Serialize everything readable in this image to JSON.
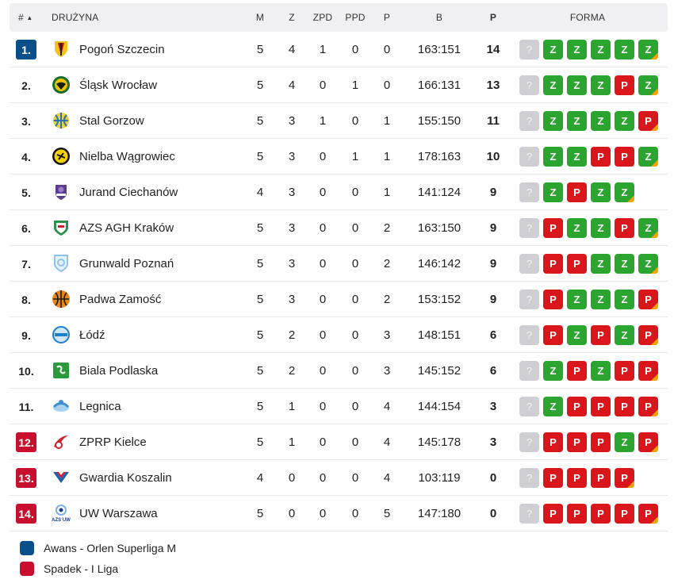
{
  "colors": {
    "promotion": "#0b4f8a",
    "relegation": "#c8102e",
    "win": "#2ba52f",
    "loss": "#d8161b",
    "unknown": "#cfcfd3",
    "latest_marker": "#f2a400"
  },
  "header": {
    "pos": "#",
    "sort_icon": "▲",
    "team": "DRUŻYNA",
    "m": "M",
    "z": "Z",
    "zpd": "ZPD",
    "ppd": "PPD",
    "p": "P",
    "b": "B",
    "pts": "P",
    "forma": "FORMA"
  },
  "rows": [
    {
      "pos": "1.",
      "zone": "promo",
      "team": "Pogoń Szczecin",
      "m": "5",
      "z": "4",
      "zpd": "1",
      "ppd": "0",
      "p": "0",
      "b": "163:151",
      "pts": "14",
      "form": [
        "?",
        "Z",
        "Z",
        "Z",
        "Z",
        "Z"
      ],
      "logo": "crest-red-gold",
      "c1": "#b5121b",
      "c2": "#f6c21b"
    },
    {
      "pos": "2.",
      "zone": "",
      "team": "Śląsk Wrocław",
      "m": "5",
      "z": "4",
      "zpd": "0",
      "ppd": "1",
      "p": "0",
      "b": "166:131",
      "pts": "13",
      "form": [
        "?",
        "Z",
        "Z",
        "Z",
        "P",
        "Z"
      ],
      "logo": "eagle-green",
      "c1": "#1a6b2e",
      "c2": "#e8c400"
    },
    {
      "pos": "3.",
      "zone": "",
      "team": "Stal Gorzow",
      "m": "5",
      "z": "3",
      "zpd": "1",
      "ppd": "0",
      "p": "1",
      "b": "155:150",
      "pts": "11",
      "form": [
        "?",
        "Z",
        "Z",
        "Z",
        "Z",
        "P"
      ],
      "logo": "ball-blue-yellow",
      "c1": "#2a6fb8",
      "c2": "#e6d23a"
    },
    {
      "pos": "4.",
      "zone": "",
      "team": "Nielba Wągrowiec",
      "m": "5",
      "z": "3",
      "zpd": "0",
      "ppd": "1",
      "p": "1",
      "b": "178:163",
      "pts": "10",
      "form": [
        "?",
        "Z",
        "Z",
        "P",
        "P",
        "Z"
      ],
      "logo": "ring-yellow",
      "c1": "#f3d000",
      "c2": "#111111"
    },
    {
      "pos": "5.",
      "zone": "",
      "team": "Jurand Ciechanów",
      "m": "4",
      "z": "3",
      "zpd": "0",
      "ppd": "0",
      "p": "1",
      "b": "141:124",
      "pts": "9",
      "form": [
        "?",
        "Z",
        "P",
        "Z",
        "Z"
      ],
      "logo": "knight-purple",
      "c1": "#5b3c8e",
      "c2": "#9b7cc8"
    },
    {
      "pos": "6.",
      "zone": "",
      "team": "AZS AGH Kraków",
      "m": "5",
      "z": "3",
      "zpd": "0",
      "ppd": "0",
      "p": "2",
      "b": "163:150",
      "pts": "9",
      "form": [
        "?",
        "P",
        "Z",
        "Z",
        "P",
        "Z"
      ],
      "logo": "shield-green-red",
      "c1": "#2a8f4a",
      "c2": "#d0202a"
    },
    {
      "pos": "7.",
      "zone": "",
      "team": "Grunwald Poznań",
      "m": "5",
      "z": "3",
      "zpd": "0",
      "ppd": "0",
      "p": "2",
      "b": "146:142",
      "pts": "9",
      "form": [
        "?",
        "P",
        "P",
        "Z",
        "Z",
        "Z"
      ],
      "logo": "shield-light-blue",
      "c1": "#8cc4e8",
      "c2": "#e6f2fa"
    },
    {
      "pos": "8.",
      "zone": "",
      "team": "Padwa Zamość",
      "m": "5",
      "z": "3",
      "zpd": "0",
      "ppd": "0",
      "p": "2",
      "b": "153:152",
      "pts": "9",
      "form": [
        "?",
        "P",
        "Z",
        "Z",
        "Z",
        "P"
      ],
      "logo": "ball-orange",
      "c1": "#e8861a",
      "c2": "#1b1b1b"
    },
    {
      "pos": "9.",
      "zone": "",
      "team": "Łódź",
      "m": "5",
      "z": "2",
      "zpd": "0",
      "ppd": "0",
      "p": "3",
      "b": "148:151",
      "pts": "6",
      "form": [
        "?",
        "P",
        "Z",
        "P",
        "Z",
        "P"
      ],
      "logo": "ball-blue",
      "c1": "#1f7fc9",
      "c2": "#cfe6f7"
    },
    {
      "pos": "10.",
      "zone": "",
      "team": "Biala Podlaska",
      "m": "5",
      "z": "2",
      "zpd": "0",
      "ppd": "0",
      "p": "3",
      "b": "145:152",
      "pts": "6",
      "form": [
        "?",
        "Z",
        "P",
        "Z",
        "P",
        "P"
      ],
      "logo": "square-green",
      "c1": "#2a9b3c",
      "c2": "#ffffff"
    },
    {
      "pos": "11.",
      "zone": "",
      "team": "Legnica",
      "m": "5",
      "z": "1",
      "zpd": "0",
      "ppd": "0",
      "p": "4",
      "b": "144:154",
      "pts": "3",
      "form": [
        "?",
        "Z",
        "P",
        "P",
        "P",
        "P"
      ],
      "logo": "swoosh-blue",
      "c1": "#3f8fd0",
      "c2": "#a7d1ef"
    },
    {
      "pos": "12.",
      "zone": "releg",
      "team": "ZPRP Kielce",
      "m": "5",
      "z": "1",
      "zpd": "0",
      "ppd": "0",
      "p": "4",
      "b": "145:178",
      "pts": "3",
      "form": [
        "?",
        "P",
        "P",
        "P",
        "Z",
        "P"
      ],
      "logo": "swoosh-red",
      "c1": "#d0202a",
      "c2": "#ffffff"
    },
    {
      "pos": "13.",
      "zone": "releg",
      "team": "Gwardia Koszalin",
      "m": "4",
      "z": "0",
      "zpd": "0",
      "ppd": "0",
      "p": "4",
      "b": "103:119",
      "pts": "0",
      "form": [
        "?",
        "P",
        "P",
        "P",
        "P"
      ],
      "logo": "chevron-blue-red",
      "c1": "#1f5fb0",
      "c2": "#d0202a"
    },
    {
      "pos": "14.",
      "zone": "releg",
      "team": "UW Warszawa",
      "m": "5",
      "z": "0",
      "zpd": "0",
      "ppd": "0",
      "p": "5",
      "b": "147:180",
      "pts": "0",
      "form": [
        "?",
        "P",
        "P",
        "P",
        "P",
        "P"
      ],
      "logo": "azs-uw",
      "c1": "#1a3f8a",
      "c2": "#7fb0e0",
      "logo_text": "AZS UW"
    }
  ],
  "legend": [
    {
      "label": "Awans - Orlen Superliga M",
      "zone": "promo"
    },
    {
      "label": "Spadek - I Liga",
      "zone": "releg"
    }
  ]
}
